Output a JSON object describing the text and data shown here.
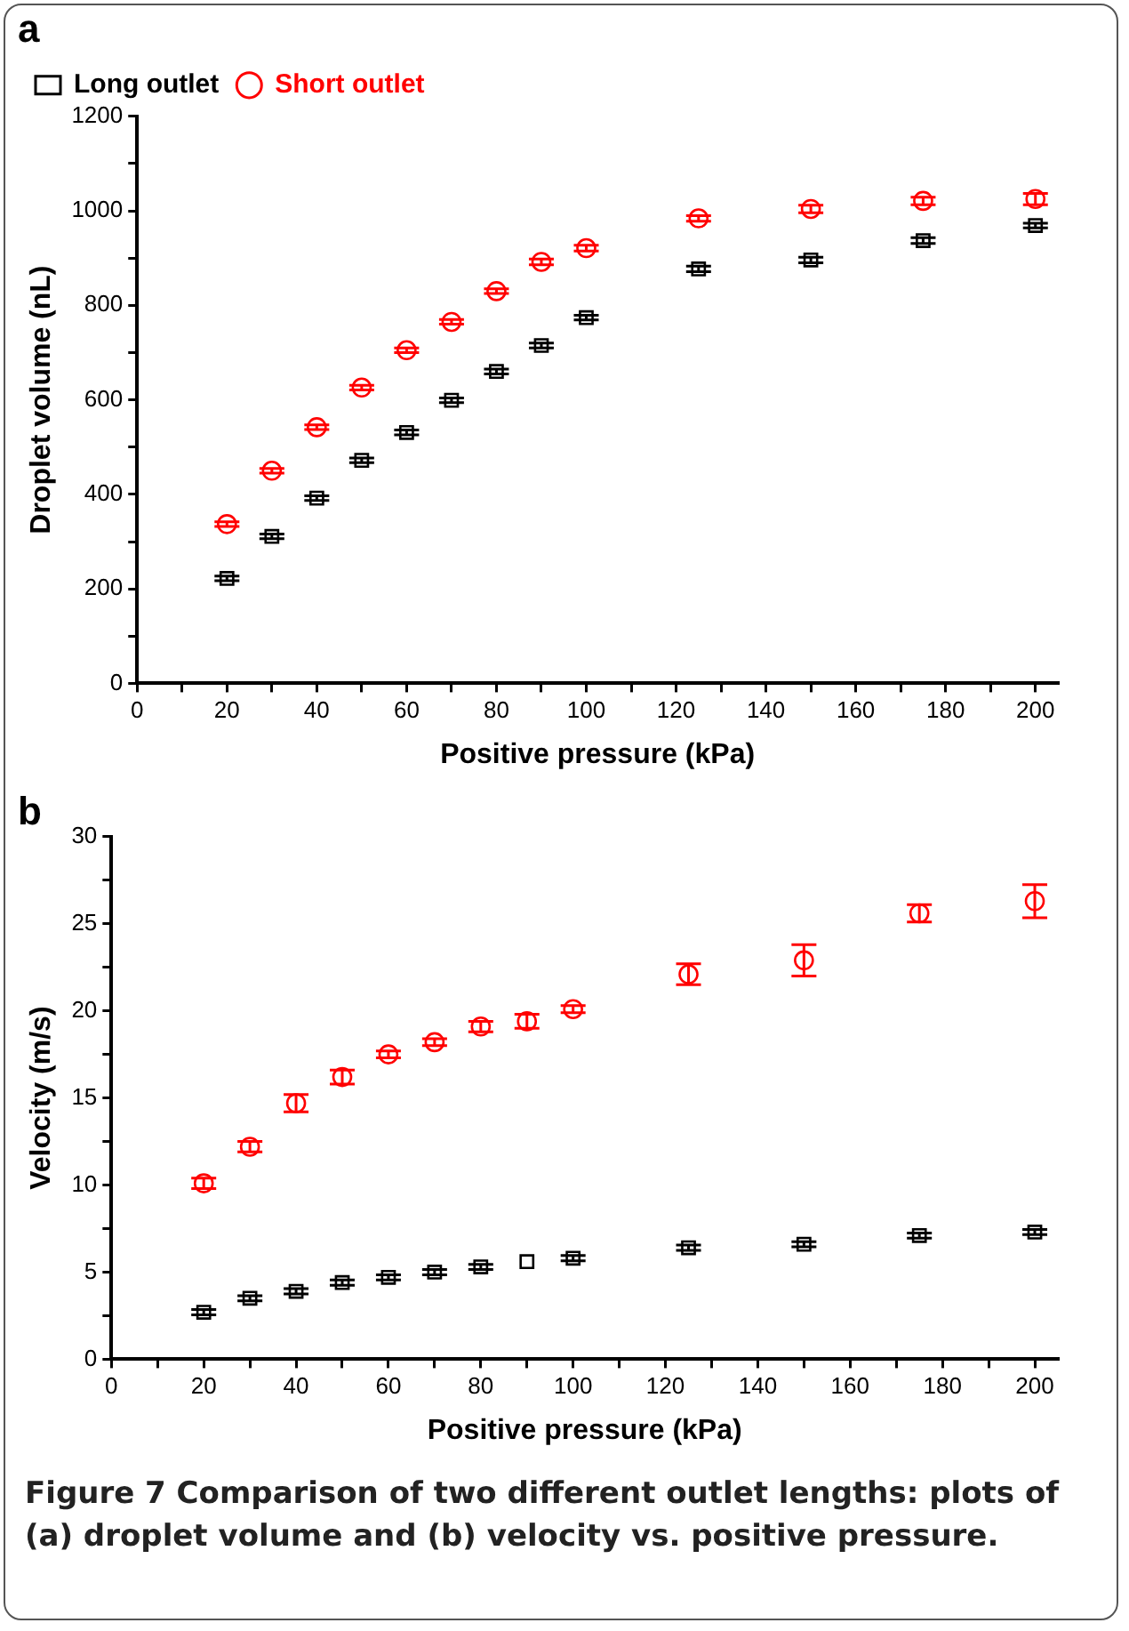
{
  "chart_data": [
    {
      "type": "scatter",
      "title": "a",
      "xlabel": "Positive pressure (kPa)",
      "ylabel": "Droplet volume (nL)",
      "x": [
        20,
        30,
        40,
        50,
        60,
        70,
        80,
        90,
        100,
        125,
        150,
        175,
        200
      ],
      "xlim": [
        0,
        205
      ],
      "xticks": [
        0,
        {
          "value": 10,
          "label": null
        },
        20,
        {
          "value": 30,
          "label": null
        },
        40,
        {
          "value": 50,
          "label": null
        },
        60,
        {
          "value": 70,
          "label": null
        },
        80,
        {
          "value": 90,
          "label": null
        },
        100,
        {
          "value": 110,
          "label": null
        },
        120,
        {
          "value": 130,
          "label": null
        },
        140,
        {
          "value": 150,
          "label": null
        },
        160,
        {
          "value": 170,
          "label": null
        },
        180,
        {
          "value": 190,
          "label": null
        },
        200
      ],
      "ylim": [
        0,
        1200
      ],
      "yticks": [
        0,
        {
          "value": 100,
          "label": null
        },
        200,
        {
          "value": 300,
          "label": null
        },
        400,
        {
          "value": 500,
          "label": null
        },
        600,
        {
          "value": 700,
          "label": null
        },
        800,
        {
          "value": 900,
          "label": null
        },
        1000,
        {
          "value": 1100,
          "label": null
        },
        1200
      ],
      "grid": false,
      "legend": "top left",
      "series": [
        {
          "name": "Long outlet",
          "color": "#000000",
          "marker": "square",
          "values": [
            222,
            311,
            392,
            472,
            531,
            599,
            660,
            715,
            774,
            877,
            896,
            937,
            969
          ],
          "errors": [
            5,
            5,
            5,
            5,
            5,
            5,
            5,
            5,
            5,
            6,
            6,
            6,
            5
          ]
        },
        {
          "name": "Short outlet",
          "color": "#ff0000",
          "marker": "circle",
          "values": [
            337,
            450,
            542,
            626,
            705,
            765,
            830,
            892,
            921,
            984,
            1004,
            1021,
            1025
          ],
          "errors": [
            5,
            5,
            5,
            5,
            5,
            5,
            5,
            6,
            6,
            6,
            8,
            8,
            12
          ]
        }
      ]
    },
    {
      "type": "scatter",
      "title": "b",
      "xlabel": "Positive pressure (kPa)",
      "ylabel": "Velocity (m/s)",
      "x": [
        20,
        30,
        40,
        50,
        60,
        70,
        80,
        90,
        100,
        125,
        150,
        175,
        200
      ],
      "xlim": [
        0,
        205
      ],
      "xticks": [
        0,
        {
          "value": 10,
          "label": null
        },
        20,
        {
          "value": 30,
          "label": null
        },
        40,
        {
          "value": 50,
          "label": null
        },
        60,
        {
          "value": 70,
          "label": null
        },
        80,
        {
          "value": 90,
          "label": null
        },
        100,
        {
          "value": 110,
          "label": null
        },
        120,
        {
          "value": 130,
          "label": null
        },
        140,
        {
          "value": 150,
          "label": null
        },
        160,
        {
          "value": 170,
          "label": null
        },
        180,
        {
          "value": 190,
          "label": null
        },
        200
      ],
      "ylim": [
        0,
        30
      ],
      "yticks": [
        0,
        {
          "value": 2.5,
          "label": null
        },
        5,
        {
          "value": 7.5,
          "label": null
        },
        10,
        {
          "value": 12.5,
          "label": null
        },
        15,
        {
          "value": 17.5,
          "label": null
        },
        20,
        {
          "value": 22.5,
          "label": null
        },
        25,
        {
          "value": 27.5,
          "label": null
        },
        30
      ],
      "grid": false,
      "legend": false,
      "annotations": [
        "Figure 7 Comparison of two different outlet lengths: plots of (a) droplet volume and (b) velocity vs. positive pressure."
      ],
      "series": [
        {
          "color": "#ff0000",
          "marker": "circle",
          "values": [
            10.1,
            12.2,
            14.7,
            16.2,
            17.5,
            18.2,
            19.1,
            19.4,
            20.1,
            22.1,
            22.9,
            25.6,
            26.3
          ],
          "errors": [
            0.3,
            0.3,
            0.5,
            0.4,
            0.2,
            0.2,
            0.3,
            0.4,
            0.2,
            0.6,
            0.9,
            0.5,
            0.95
          ]
        },
        {
          "color": "#000000",
          "marker": "square",
          "values": [
            2.7,
            3.5,
            3.9,
            4.4,
            4.7,
            5.0,
            5.3,
            5.6,
            5.8,
            6.4,
            6.6,
            7.1,
            7.3
          ],
          "errors": [
            0.15,
            0.15,
            0.15,
            0.15,
            0.15,
            0.15,
            0.15,
            null,
            0.15,
            0.15,
            0.15,
            0.15,
            0.15
          ]
        }
      ]
    }
  ]
}
